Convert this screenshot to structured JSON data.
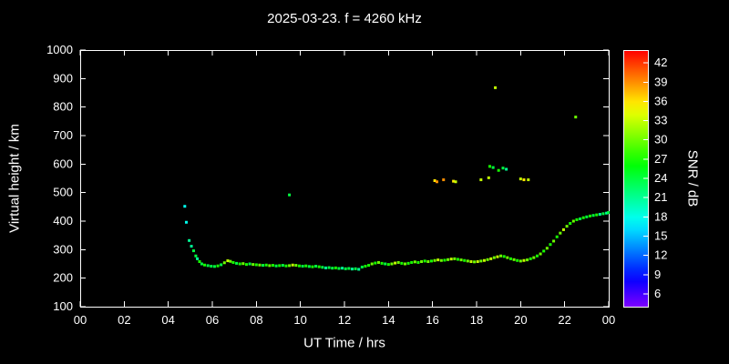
{
  "chart_data": {
    "type": "scatter",
    "title": "2025-03-23. f = 4260 kHz",
    "xlabel": "UT Time / hrs",
    "ylabel": "Virtual height / km",
    "colorbar_label": "SNR / dB",
    "xlim": [
      0,
      24
    ],
    "ylim": [
      100,
      1000
    ],
    "snr_range": [
      4,
      44
    ],
    "grid": false,
    "background": "#000000",
    "frame_color": "#ffffff",
    "x_ticks": {
      "values": [
        0,
        2,
        4,
        6,
        8,
        10,
        12,
        14,
        16,
        18,
        20,
        22,
        24
      ],
      "labels": [
        "00",
        "02",
        "04",
        "06",
        "08",
        "10",
        "12",
        "14",
        "16",
        "18",
        "20",
        "22",
        "00"
      ]
    },
    "y_ticks": [
      100,
      200,
      300,
      400,
      500,
      600,
      700,
      800,
      900,
      1000
    ],
    "colorbar_ticks": [
      6,
      9,
      12,
      15,
      18,
      21,
      24,
      27,
      30,
      33,
      36,
      39,
      42
    ],
    "points_format": "[UT_hours, virtual_height_km, SNR_dB]",
    "points": [
      [
        4.75,
        452,
        18
      ],
      [
        4.82,
        396,
        18
      ],
      [
        4.95,
        332,
        21
      ],
      [
        5.05,
        312,
        21
      ],
      [
        5.15,
        296,
        24
      ],
      [
        5.25,
        278,
        24
      ],
      [
        5.32,
        268,
        21
      ],
      [
        5.42,
        258,
        27
      ],
      [
        5.52,
        250,
        24
      ],
      [
        5.65,
        246,
        27
      ],
      [
        5.8,
        244,
        24
      ],
      [
        5.95,
        242,
        24
      ],
      [
        6.1,
        241,
        24
      ],
      [
        6.25,
        243,
        27
      ],
      [
        6.4,
        247,
        24
      ],
      [
        6.55,
        254,
        30
      ],
      [
        6.7,
        261,
        33
      ],
      [
        6.82,
        259,
        30
      ],
      [
        6.95,
        255,
        27
      ],
      [
        7.1,
        252,
        24
      ],
      [
        7.25,
        250,
        27
      ],
      [
        7.4,
        251,
        30
      ],
      [
        7.55,
        248,
        27
      ],
      [
        7.7,
        250,
        24
      ],
      [
        7.85,
        248,
        30
      ],
      [
        8.0,
        247,
        27
      ],
      [
        8.15,
        246,
        30
      ],
      [
        8.3,
        245,
        24
      ],
      [
        8.45,
        246,
        27
      ],
      [
        8.6,
        244,
        30
      ],
      [
        8.75,
        245,
        27
      ],
      [
        8.9,
        243,
        24
      ],
      [
        9.05,
        244,
        27
      ],
      [
        9.2,
        245,
        24
      ],
      [
        9.35,
        243,
        27
      ],
      [
        9.5,
        244,
        30
      ],
      [
        9.65,
        246,
        33
      ],
      [
        9.8,
        245,
        30
      ],
      [
        9.95,
        243,
        27
      ],
      [
        10.1,
        242,
        24
      ],
      [
        10.25,
        243,
        27
      ],
      [
        10.4,
        241,
        24
      ],
      [
        10.55,
        240,
        27
      ],
      [
        10.7,
        242,
        24
      ],
      [
        10.85,
        240,
        27
      ],
      [
        11.0,
        238,
        24
      ],
      [
        11.15,
        236,
        21
      ],
      [
        11.3,
        237,
        24
      ],
      [
        11.45,
        235,
        24
      ],
      [
        11.6,
        236,
        27
      ],
      [
        11.75,
        234,
        24
      ],
      [
        11.9,
        235,
        21
      ],
      [
        12.05,
        233,
        24
      ],
      [
        12.2,
        234,
        24
      ],
      [
        12.35,
        232,
        21
      ],
      [
        12.5,
        233,
        24
      ],
      [
        12.65,
        231,
        21
      ],
      [
        12.8,
        239,
        24
      ],
      [
        12.95,
        242,
        27
      ],
      [
        13.1,
        245,
        27
      ],
      [
        13.25,
        250,
        30
      ],
      [
        13.4,
        253,
        27
      ],
      [
        13.55,
        255,
        30
      ],
      [
        13.7,
        252,
        27
      ],
      [
        13.85,
        250,
        24
      ],
      [
        14.0,
        248,
        27
      ],
      [
        14.15,
        250,
        30
      ],
      [
        14.3,
        253,
        33
      ],
      [
        14.45,
        255,
        30
      ],
      [
        14.6,
        252,
        27
      ],
      [
        14.75,
        250,
        30
      ],
      [
        14.9,
        252,
        27
      ],
      [
        15.05,
        255,
        27
      ],
      [
        15.2,
        257,
        30
      ],
      [
        15.35,
        255,
        27
      ],
      [
        15.5,
        258,
        30
      ],
      [
        15.65,
        260,
        27
      ],
      [
        15.8,
        258,
        30
      ],
      [
        15.95,
        260,
        27
      ],
      [
        16.1,
        262,
        30
      ],
      [
        16.25,
        264,
        33
      ],
      [
        16.4,
        262,
        30
      ],
      [
        16.55,
        263,
        27
      ],
      [
        16.7,
        265,
        30
      ],
      [
        16.85,
        267,
        33
      ],
      [
        17.0,
        268,
        30
      ],
      [
        17.15,
        266,
        27
      ],
      [
        17.3,
        264,
        30
      ],
      [
        17.45,
        262,
        27
      ],
      [
        17.6,
        260,
        30
      ],
      [
        17.75,
        258,
        33
      ],
      [
        17.9,
        257,
        30
      ],
      [
        18.05,
        258,
        33
      ],
      [
        18.2,
        260,
        30
      ],
      [
        18.35,
        262,
        33
      ],
      [
        18.5,
        265,
        30
      ],
      [
        18.65,
        268,
        33
      ],
      [
        18.8,
        272,
        30
      ],
      [
        18.95,
        275,
        33
      ],
      [
        19.1,
        278,
        30
      ],
      [
        19.25,
        276,
        27
      ],
      [
        19.4,
        272,
        30
      ],
      [
        19.55,
        268,
        27
      ],
      [
        19.7,
        265,
        30
      ],
      [
        19.85,
        262,
        27
      ],
      [
        20.0,
        260,
        30
      ],
      [
        20.15,
        262,
        33
      ],
      [
        20.3,
        264,
        30
      ],
      [
        20.45,
        268,
        27
      ],
      [
        20.6,
        272,
        30
      ],
      [
        20.75,
        278,
        27
      ],
      [
        20.9,
        285,
        30
      ],
      [
        21.05,
        295,
        27
      ],
      [
        21.2,
        305,
        30
      ],
      [
        21.35,
        318,
        27
      ],
      [
        21.5,
        330,
        30
      ],
      [
        21.65,
        345,
        27
      ],
      [
        21.8,
        358,
        30
      ],
      [
        21.95,
        370,
        33
      ],
      [
        22.1,
        382,
        30
      ],
      [
        22.25,
        392,
        27
      ],
      [
        22.4,
        400,
        30
      ],
      [
        22.55,
        405,
        27
      ],
      [
        22.7,
        408,
        24
      ],
      [
        22.85,
        412,
        27
      ],
      [
        23.0,
        415,
        24
      ],
      [
        23.15,
        418,
        27
      ],
      [
        23.3,
        420,
        24
      ],
      [
        23.45,
        422,
        27
      ],
      [
        23.6,
        424,
        21
      ],
      [
        23.75,
        426,
        24
      ],
      [
        23.9,
        428,
        21
      ],
      [
        23.98,
        430,
        24
      ],
      [
        9.5,
        492,
        24
      ],
      [
        16.1,
        542,
        36
      ],
      [
        16.2,
        538,
        39
      ],
      [
        16.5,
        545,
        39
      ],
      [
        16.95,
        540,
        36
      ],
      [
        17.05,
        538,
        33
      ],
      [
        18.2,
        545,
        33
      ],
      [
        18.55,
        552,
        33
      ],
      [
        18.6,
        592,
        27
      ],
      [
        18.75,
        588,
        24
      ],
      [
        18.85,
        868,
        33
      ],
      [
        19.0,
        578,
        27
      ],
      [
        19.2,
        586,
        24
      ],
      [
        19.35,
        582,
        21
      ],
      [
        20.0,
        548,
        33
      ],
      [
        20.15,
        545,
        36
      ],
      [
        20.35,
        545,
        33
      ],
      [
        22.5,
        765,
        30
      ]
    ]
  }
}
